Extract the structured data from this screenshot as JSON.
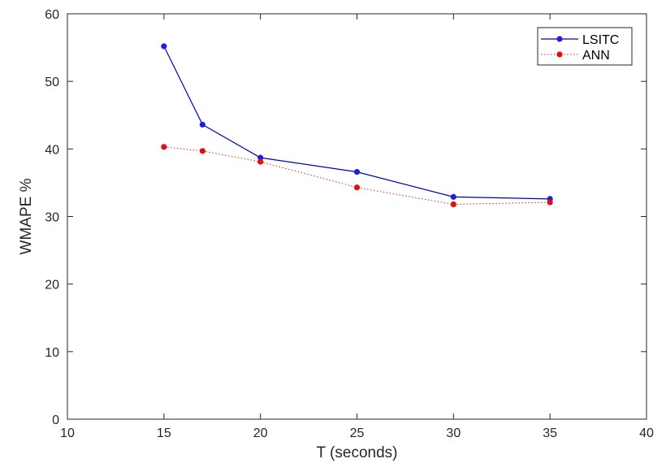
{
  "chart_data": {
    "type": "line",
    "title": "",
    "xlabel": "T (seconds)",
    "ylabel": "WMAPE %",
    "xlim": [
      10,
      40
    ],
    "ylim": [
      0,
      60
    ],
    "xticks": [
      10,
      15,
      20,
      25,
      30,
      35,
      40
    ],
    "yticks": [
      0,
      10,
      20,
      30,
      40,
      50,
      60
    ],
    "grid": false,
    "legend_position": "top-right",
    "x": [
      15,
      17,
      20,
      25,
      30,
      35
    ],
    "series": [
      {
        "name": "LSITC",
        "values": [
          55.2,
          43.6,
          38.7,
          36.6,
          32.9,
          32.6
        ],
        "color": "#0000bb",
        "marker_color": "#1f1fdd",
        "line_style": "solid"
      },
      {
        "name": "ANN",
        "values": [
          40.3,
          39.7,
          38.1,
          34.3,
          31.8,
          32.1
        ],
        "color": "#dd2222",
        "marker_color": "#e01010",
        "line_style": "dotted"
      }
    ]
  }
}
